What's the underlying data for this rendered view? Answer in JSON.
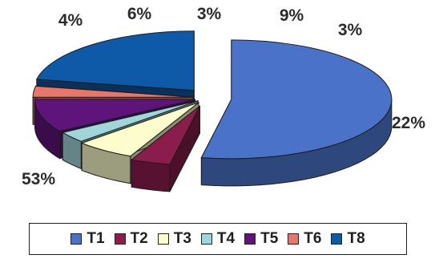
{
  "chart_data": {
    "type": "pie",
    "categories": [
      "T1",
      "T2",
      "T3",
      "T4",
      "T5",
      "T6",
      "T8"
    ],
    "values": [
      53,
      4,
      6,
      3,
      9,
      3,
      22
    ],
    "labels": [
      "53%",
      "4%",
      "6%",
      "3%",
      "9%",
      "3%",
      "22%"
    ],
    "colors": [
      "#4a72c8",
      "#8b1d4d",
      "#fcfccc",
      "#9fd6da",
      "#5e147a",
      "#e8766a",
      "#0f5aa8"
    ],
    "legend_position": "bottom",
    "style": "3d-exploded"
  }
}
